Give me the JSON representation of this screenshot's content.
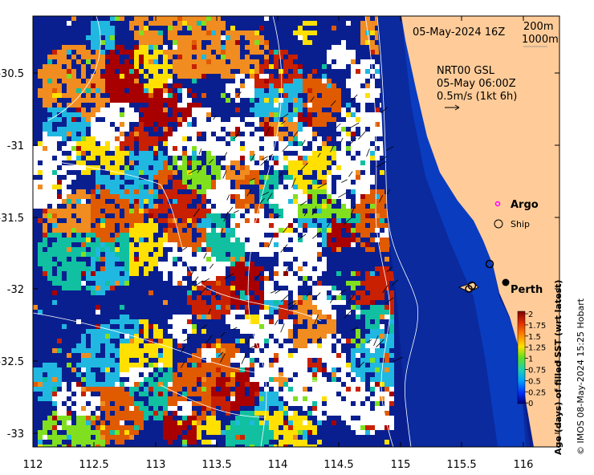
{
  "header": {
    "date_label": "05-May-2024 16Z",
    "isobath_200": "200m",
    "isobath_1000": "1000m"
  },
  "current_info": {
    "line1": "NRT00 GSL",
    "line2": "05-May 06:00Z",
    "line3": "0.5m/s (1kt 6h)"
  },
  "legend": {
    "argo": "Argo",
    "ship": "Ship",
    "argo_color": "#ff00ff"
  },
  "places": {
    "perth": "Perth"
  },
  "x_axis": {
    "ticks": [
      "112",
      "112.5",
      "113",
      "113.5",
      "114",
      "114.5",
      "115",
      "115.5",
      "116"
    ]
  },
  "y_axis": {
    "ticks": [
      "-30.5",
      "-31",
      "-31.5",
      "-32",
      "-32.5",
      "-33"
    ]
  },
  "colorbar": {
    "title": "Age (days) of filled SST (wrt latest)",
    "ticks": [
      "2",
      "1.75",
      "1.5",
      "1.25",
      "1",
      "0.75",
      "0.5",
      "0.25",
      "0"
    ]
  },
  "credit": "© IMOS 08-May-2024 15:25 Hobart",
  "colors": {
    "ocean_deep": "#0a1f8f",
    "land": "#ffcc99",
    "age_2": "#a80000",
    "age_1_75": "#d83a00",
    "age_1_5": "#f07a10",
    "age_1_25": "#ffe000",
    "age_1": "#80e020",
    "age_0_75": "#10c0a0",
    "age_0_5": "#20b8e0",
    "age_0": "#0a1f8f"
  }
}
